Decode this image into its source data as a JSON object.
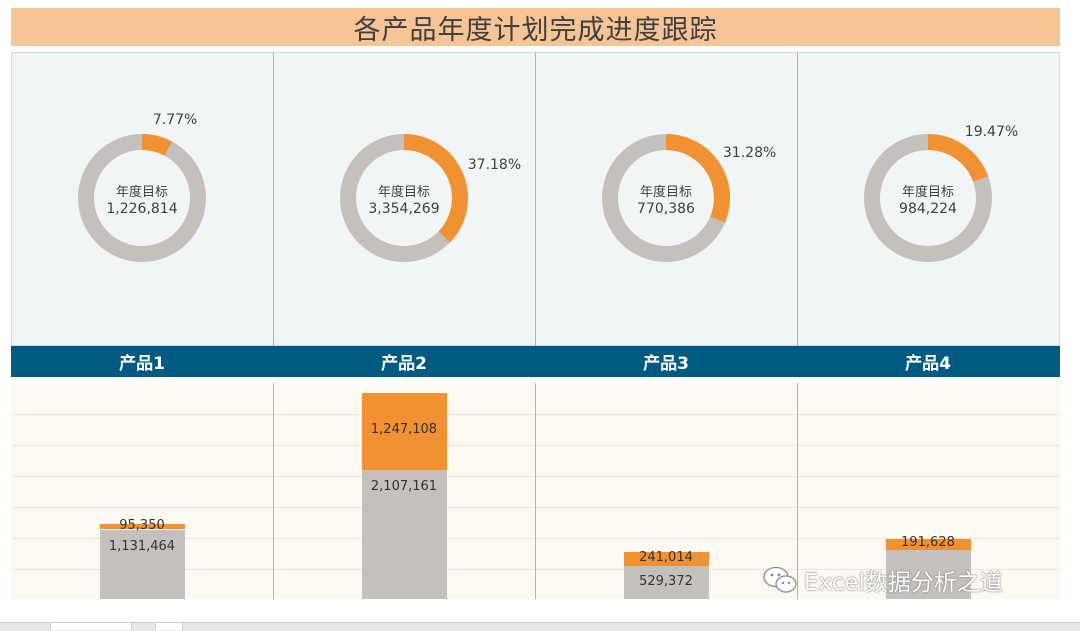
{
  "title": "各产品年度计划完成进度跟踪",
  "colors": {
    "title_bg": "#f6c495",
    "done": "#f29131",
    "remaining": "#c4c0bd",
    "header_bg": "#005a82",
    "donut_panel_bg": "#f2f5f5",
    "bar_panel_bg": "#fdf9f2"
  },
  "center_title": "年度目标",
  "watermark": "Excel数据分析之道",
  "chart_data": [
    {
      "type": "pie",
      "categories": [
        "产品1",
        "产品2",
        "产品3",
        "产品4"
      ],
      "targets": [
        "1,226,814",
        "3,354,269",
        "770,386",
        "984,224"
      ],
      "completion_pct": [
        7.77,
        37.18,
        31.28,
        19.47
      ],
      "pct_labels": [
        "7.77%",
        "37.18%",
        "31.28%",
        "19.47%"
      ]
    },
    {
      "type": "bar",
      "stacked": true,
      "categories": [
        "产品1",
        "产品2",
        "产品3",
        "产品4"
      ],
      "series": [
        {
          "values": [
            1131464,
            2107161,
            529372,
            792596
          ]
        },
        {
          "values": [
            95350,
            1247108,
            241014,
            191628
          ]
        }
      ],
      "value_labels": [
        [
          "1,131,464",
          "2,107,161",
          "529,372",
          ""
        ],
        [
          "95,350",
          "1,247,108",
          "241,014",
          "191,628"
        ]
      ],
      "ylim": [
        0,
        3354269
      ]
    }
  ]
}
